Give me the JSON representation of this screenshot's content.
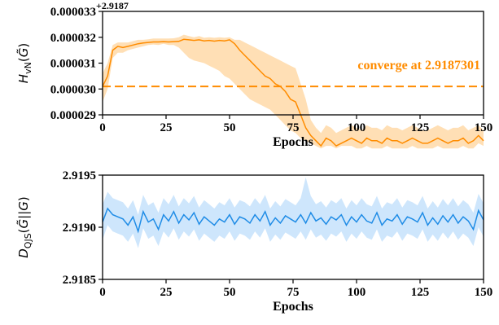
{
  "colors": {
    "top": "#ff8c00",
    "top_band": "#ffd9a8",
    "bottom": "#1f8ce6",
    "bottom_band": "#c6e2fb"
  },
  "chart_data": [
    {
      "type": "line",
      "ylabel": "H_vN(G̃)",
      "xlabel": "Epochs",
      "offset_label": "+2.9187",
      "annotation": "converge at 2.9187301",
      "reference_line": 3.01e-05,
      "xlim": [
        0,
        150
      ],
      "ylim": [
        2.9e-05,
        3.3e-05
      ],
      "xticks": [
        "0",
        "25",
        "50",
        "75",
        "100",
        "125",
        "150"
      ],
      "yticks": [
        "0.000029",
        "0.000030",
        "0.000031",
        "0.000032",
        "0.000033"
      ],
      "x": [
        0,
        2,
        4,
        6,
        8,
        10,
        12,
        14,
        16,
        18,
        20,
        22,
        24,
        26,
        28,
        30,
        32,
        34,
        36,
        38,
        40,
        42,
        44,
        46,
        48,
        50,
        52,
        54,
        56,
        58,
        60,
        62,
        64,
        66,
        68,
        70,
        72,
        74,
        76,
        78,
        80,
        82,
        84,
        86,
        88,
        90,
        92,
        94,
        96,
        98,
        100,
        102,
        104,
        106,
        108,
        110,
        112,
        114,
        116,
        118,
        120,
        122,
        124,
        126,
        128,
        130,
        132,
        134,
        136,
        138,
        140,
        142,
        144,
        146,
        148,
        150
      ],
      "values": [
        3.01,
        3.05,
        3.15,
        3.165,
        3.16,
        3.165,
        3.17,
        3.175,
        3.178,
        3.18,
        3.182,
        3.182,
        3.183,
        3.182,
        3.183,
        3.184,
        3.192,
        3.19,
        3.188,
        3.19,
        3.186,
        3.188,
        3.185,
        3.188,
        3.186,
        3.19,
        3.175,
        3.15,
        3.13,
        3.11,
        3.09,
        3.07,
        3.05,
        3.04,
        3.02,
        3.01,
        2.99,
        2.96,
        2.95,
        2.9,
        2.85,
        2.82,
        2.8,
        2.78,
        2.81,
        2.8,
        2.78,
        2.79,
        2.8,
        2.81,
        2.8,
        2.79,
        2.81,
        2.8,
        2.8,
        2.79,
        2.81,
        2.8,
        2.8,
        2.79,
        2.8,
        2.81,
        2.8,
        2.79,
        2.79,
        2.8,
        2.81,
        2.8,
        2.79,
        2.8,
        2.8,
        2.81,
        2.79,
        2.8,
        2.82,
        2.8
      ],
      "band_lower": [
        2.95,
        3.0,
        3.12,
        3.14,
        3.14,
        3.15,
        3.155,
        3.16,
        3.165,
        3.17,
        3.172,
        3.17,
        3.175,
        3.17,
        3.17,
        3.16,
        3.14,
        3.12,
        3.11,
        3.105,
        3.1,
        3.09,
        3.08,
        3.07,
        3.05,
        3.04,
        3.02,
        3.0,
        2.98,
        2.96,
        2.95,
        2.94,
        2.93,
        2.92,
        2.9,
        2.88,
        2.86,
        2.84,
        2.83,
        2.81,
        2.8,
        2.79,
        2.78,
        2.77,
        2.78,
        2.78,
        2.77,
        2.78,
        2.78,
        2.78,
        2.77,
        2.77,
        2.78,
        2.77,
        2.77,
        2.77,
        2.78,
        2.77,
        2.77,
        2.77,
        2.77,
        2.78,
        2.77,
        2.77,
        2.77,
        2.77,
        2.78,
        2.77,
        2.77,
        2.77,
        2.77,
        2.78,
        2.77,
        2.77,
        2.79,
        2.78
      ],
      "band_upper": [
        3.06,
        3.1,
        3.17,
        3.18,
        3.18,
        3.18,
        3.185,
        3.19,
        3.19,
        3.192,
        3.195,
        3.195,
        3.195,
        3.195,
        3.196,
        3.2,
        3.21,
        3.205,
        3.2,
        3.205,
        3.198,
        3.2,
        3.198,
        3.2,
        3.198,
        3.2,
        3.19,
        3.19,
        3.18,
        3.17,
        3.16,
        3.15,
        3.14,
        3.13,
        3.12,
        3.11,
        3.1,
        3.09,
        3.08,
        3.02,
        2.96,
        2.88,
        2.85,
        2.83,
        2.86,
        2.85,
        2.83,
        2.84,
        2.85,
        2.86,
        2.85,
        2.84,
        2.86,
        2.85,
        2.85,
        2.84,
        2.86,
        2.85,
        2.85,
        2.84,
        2.85,
        2.86,
        2.85,
        2.84,
        2.84,
        2.85,
        2.86,
        2.85,
        2.84,
        2.85,
        2.85,
        2.86,
        2.84,
        2.85,
        2.86,
        2.84
      ]
    },
    {
      "type": "line",
      "ylabel": "D_QJS(G̃||G)",
      "xlabel": "Epochs",
      "xlim": [
        0,
        150
      ],
      "ylim": [
        2.9185,
        2.9195
      ],
      "xticks": [
        "0",
        "25",
        "50",
        "75",
        "100",
        "125",
        "150"
      ],
      "yticks": [
        "2.9185",
        "2.9190",
        "2.9195"
      ],
      "x": [
        0,
        2,
        4,
        6,
        8,
        10,
        12,
        14,
        16,
        18,
        20,
        22,
        24,
        26,
        28,
        30,
        32,
        34,
        36,
        38,
        40,
        42,
        44,
        46,
        48,
        50,
        52,
        54,
        56,
        58,
        60,
        62,
        64,
        66,
        68,
        70,
        72,
        74,
        76,
        78,
        80,
        82,
        84,
        86,
        88,
        90,
        92,
        94,
        96,
        98,
        100,
        102,
        104,
        106,
        108,
        110,
        112,
        114,
        116,
        118,
        120,
        122,
        124,
        126,
        128,
        130,
        132,
        134,
        136,
        138,
        140,
        142,
        144,
        146,
        148,
        150
      ],
      "values": [
        2.91905,
        2.91918,
        2.91912,
        2.9191,
        2.91908,
        2.91902,
        2.9191,
        2.91896,
        2.91915,
        2.91905,
        2.91908,
        2.91898,
        2.91912,
        2.91906,
        2.91915,
        2.91904,
        2.91912,
        2.91907,
        2.91914,
        2.91903,
        2.9191,
        2.91906,
        2.91902,
        2.91908,
        2.91905,
        2.91912,
        2.91903,
        2.9191,
        2.91908,
        2.91904,
        2.91912,
        2.91906,
        2.91915,
        2.91902,
        2.91909,
        2.91904,
        2.91911,
        2.91908,
        2.91905,
        2.91912,
        2.91904,
        2.91914,
        2.91906,
        2.91909,
        2.91903,
        2.9191,
        2.91907,
        2.91912,
        2.91902,
        2.9191,
        2.91905,
        2.91912,
        2.91906,
        2.91904,
        2.91914,
        2.91902,
        2.91908,
        2.91906,
        2.91912,
        2.91903,
        2.9191,
        2.91908,
        2.91905,
        2.91914,
        2.91902,
        2.91909,
        2.91903,
        2.91911,
        2.91905,
        2.91912,
        2.91904,
        2.9191,
        2.91906,
        2.91898,
        2.91916,
        2.91907
      ],
      "band_lower": [
        2.91888,
        2.91902,
        2.91896,
        2.91894,
        2.91892,
        2.91886,
        2.91894,
        2.9188,
        2.91899,
        2.91889,
        2.91892,
        2.91882,
        2.91896,
        2.9189,
        2.91899,
        2.91888,
        2.91896,
        2.91891,
        2.91898,
        2.91887,
        2.91894,
        2.9189,
        2.91886,
        2.91892,
        2.91889,
        2.91896,
        2.91887,
        2.91894,
        2.91892,
        2.91888,
        2.91896,
        2.9189,
        2.91899,
        2.91886,
        2.91893,
        2.91888,
        2.91895,
        2.91892,
        2.91889,
        2.91896,
        2.91888,
        2.91898,
        2.9189,
        2.91893,
        2.91887,
        2.91894,
        2.91891,
        2.91896,
        2.91886,
        2.91894,
        2.91889,
        2.91896,
        2.9189,
        2.91888,
        2.91898,
        2.91886,
        2.91892,
        2.9189,
        2.91896,
        2.91887,
        2.91894,
        2.91892,
        2.91889,
        2.91898,
        2.91886,
        2.91893,
        2.91887,
        2.91895,
        2.91889,
        2.91896,
        2.91888,
        2.91894,
        2.9189,
        2.91882,
        2.919,
        2.91891
      ],
      "band_upper": [
        2.91922,
        2.91934,
        2.91928,
        2.91926,
        2.91924,
        2.91918,
        2.91926,
        2.91912,
        2.91931,
        2.91921,
        2.91924,
        2.91914,
        2.91928,
        2.91922,
        2.91931,
        2.9192,
        2.91928,
        2.91923,
        2.9193,
        2.91919,
        2.91926,
        2.91922,
        2.91918,
        2.91924,
        2.91921,
        2.91928,
        2.91919,
        2.91926,
        2.91924,
        2.9192,
        2.91928,
        2.91922,
        2.91931,
        2.91918,
        2.91925,
        2.9192,
        2.91927,
        2.91924,
        2.91921,
        2.91928,
        2.91948,
        2.9193,
        2.91922,
        2.91925,
        2.91919,
        2.91926,
        2.91923,
        2.91928,
        2.91918,
        2.91926,
        2.91921,
        2.91928,
        2.91922,
        2.9192,
        2.9193,
        2.91918,
        2.91924,
        2.91922,
        2.91928,
        2.91919,
        2.91926,
        2.91924,
        2.91921,
        2.9193,
        2.91918,
        2.91925,
        2.91919,
        2.91927,
        2.91921,
        2.91928,
        2.9192,
        2.91926,
        2.91922,
        2.91914,
        2.91932,
        2.91923
      ]
    }
  ]
}
